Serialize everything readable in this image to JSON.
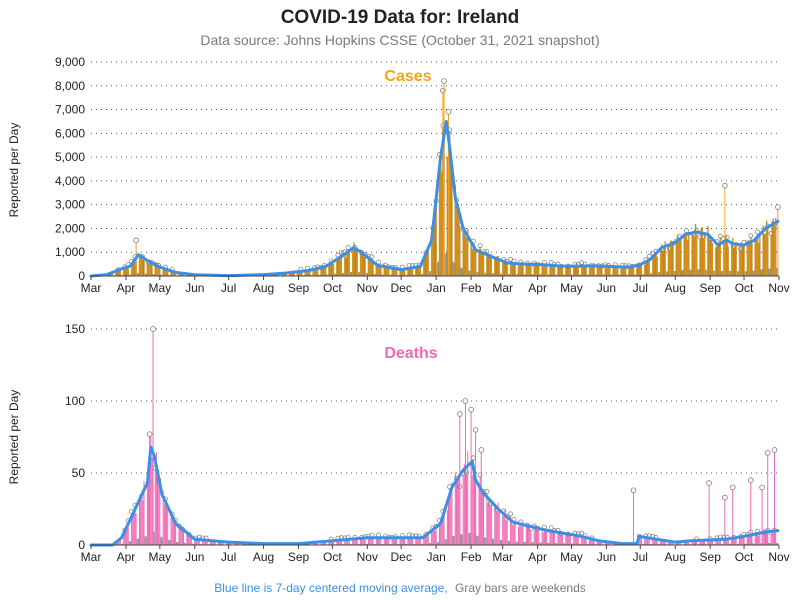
{
  "title": "COVID-19 Data for: Ireland",
  "subtitle": "Data source: Johns Hopkins CSSE (October 31, 2021 snapshot)",
  "footer": {
    "part1": "Blue line is 7-day centered moving average,",
    "part2": "Gray bars are weekends"
  },
  "colors": {
    "cases": "#f5a31a",
    "deaths": "#ee6ab2",
    "average": "#3d8fe6",
    "weekend": "#8c8c8c",
    "grid": "#555555"
  },
  "chart_data": [
    {
      "type": "bar",
      "title": "Cases",
      "ylabel": "Reported per Day",
      "ylim": [
        0,
        9000
      ],
      "yticks": [
        "0",
        "1,000",
        "2,000",
        "3,000",
        "4,000",
        "5,000",
        "6,000",
        "7,000",
        "8,000",
        "9,000"
      ],
      "xticks": [
        "Mar",
        "Apr",
        "May",
        "Jun",
        "Jul",
        "Aug",
        "Sep",
        "Oct",
        "Nov",
        "Dec",
        "Jan",
        "Feb",
        "Mar",
        "Apr",
        "May",
        "Jun",
        "Jul",
        "Aug",
        "Sep",
        "Oct",
        "Nov"
      ],
      "grid": "horizontal dotted",
      "series": [
        {
          "name": "Blue line is 7-day centered moving average",
          "type": "line",
          "points": [
            [
              "2020-03-01",
              0
            ],
            [
              "2020-03-15",
              60
            ],
            [
              "2020-03-25",
              250
            ],
            [
              "2020-04-05",
              420
            ],
            [
              "2020-04-12",
              900
            ],
            [
              "2020-04-20",
              650
            ],
            [
              "2020-05-01",
              380
            ],
            [
              "2020-05-15",
              150
            ],
            [
              "2020-06-01",
              50
            ],
            [
              "2020-07-01",
              15
            ],
            [
              "2020-08-01",
              60
            ],
            [
              "2020-08-20",
              120
            ],
            [
              "2020-09-10",
              230
            ],
            [
              "2020-09-25",
              400
            ],
            [
              "2020-10-10",
              850
            ],
            [
              "2020-10-20",
              1200
            ],
            [
              "2020-10-28",
              950
            ],
            [
              "2020-11-10",
              450
            ],
            [
              "2020-12-01",
              270
            ],
            [
              "2020-12-18",
              400
            ],
            [
              "2020-12-28",
              1500
            ],
            [
              "2021-01-05",
              5000
            ],
            [
              "2021-01-10",
              6500
            ],
            [
              "2021-01-13",
              5400
            ],
            [
              "2021-01-18",
              3300
            ],
            [
              "2021-01-25",
              2000
            ],
            [
              "2021-02-05",
              1100
            ],
            [
              "2021-02-20",
              800
            ],
            [
              "2021-03-05",
              550
            ],
            [
              "2021-03-20",
              500
            ],
            [
              "2021-04-05",
              480
            ],
            [
              "2021-04-20",
              420
            ],
            [
              "2021-05-05",
              410
            ],
            [
              "2021-05-20",
              430
            ],
            [
              "2021-06-05",
              400
            ],
            [
              "2021-06-20",
              370
            ],
            [
              "2021-07-01",
              480
            ],
            [
              "2021-07-10",
              700
            ],
            [
              "2021-07-20",
              1200
            ],
            [
              "2021-08-01",
              1400
            ],
            [
              "2021-08-10",
              1750
            ],
            [
              "2021-08-20",
              1850
            ],
            [
              "2021-08-30",
              1750
            ],
            [
              "2021-09-08",
              1300
            ],
            [
              "2021-09-15",
              1500
            ],
            [
              "2021-09-22",
              1350
            ],
            [
              "2021-10-01",
              1300
            ],
            [
              "2021-10-10",
              1500
            ],
            [
              "2021-10-20",
              2000
            ],
            [
              "2021-10-31",
              2300
            ]
          ]
        }
      ],
      "spikes": [
        [
          "2020-04-10",
          1500
        ],
        [
          "2021-01-07",
          7800
        ],
        [
          "2021-01-08",
          8200
        ],
        [
          "2021-01-12",
          6900
        ],
        [
          "2021-09-14",
          3800
        ],
        [
          "2021-10-31",
          2900
        ]
      ]
    },
    {
      "type": "bar",
      "title": "Deaths",
      "ylabel": "Reported per Day",
      "ylim": [
        0,
        150
      ],
      "yticks": [
        "0",
        "50",
        "100",
        "150"
      ],
      "xticks": [
        "Mar",
        "Apr",
        "May",
        "Jun",
        "Jul",
        "Aug",
        "Sep",
        "Oct",
        "Nov",
        "Dec",
        "Jan",
        "Feb",
        "Mar",
        "Apr",
        "May",
        "Jun",
        "Jul",
        "Aug",
        "Sep",
        "Oct",
        "Nov"
      ],
      "grid": "horizontal dotted",
      "series": [
        {
          "name": "Blue line is 7-day centered moving average",
          "type": "line",
          "points": [
            [
              "2020-03-01",
              0
            ],
            [
              "2020-03-20",
              0
            ],
            [
              "2020-03-28",
              5
            ],
            [
              "2020-04-05",
              18
            ],
            [
              "2020-04-15",
              35
            ],
            [
              "2020-04-20",
              43
            ],
            [
              "2020-04-23",
              68
            ],
            [
              "2020-04-26",
              62
            ],
            [
              "2020-05-03",
              35
            ],
            [
              "2020-05-15",
              15
            ],
            [
              "2020-06-01",
              4
            ],
            [
              "2020-07-01",
              2
            ],
            [
              "2020-08-01",
              1
            ],
            [
              "2020-09-01",
              1
            ],
            [
              "2020-10-01",
              3
            ],
            [
              "2020-11-01",
              5
            ],
            [
              "2020-12-01",
              5
            ],
            [
              "2020-12-20",
              5
            ],
            [
              "2021-01-05",
              15
            ],
            [
              "2021-01-15",
              40
            ],
            [
              "2021-01-25",
              52
            ],
            [
              "2021-02-02",
              58
            ],
            [
              "2021-02-05",
              45
            ],
            [
              "2021-02-12",
              36
            ],
            [
              "2021-02-25",
              25
            ],
            [
              "2021-03-10",
              16
            ],
            [
              "2021-03-25",
              13
            ],
            [
              "2021-04-10",
              10
            ],
            [
              "2021-04-25",
              8
            ],
            [
              "2021-05-10",
              6
            ],
            [
              "2021-05-25",
              3
            ],
            [
              "2021-06-15",
              1
            ],
            [
              "2021-06-28",
              1
            ],
            [
              "2021-06-30",
              6
            ],
            [
              "2021-07-15",
              4
            ],
            [
              "2021-08-01",
              2
            ],
            [
              "2021-08-15",
              3
            ],
            [
              "2021-09-15",
              4
            ],
            [
              "2021-10-01",
              6
            ],
            [
              "2021-10-20",
              9
            ],
            [
              "2021-10-31",
              10
            ]
          ]
        }
      ],
      "spikes": [
        [
          "2020-04-25",
          150
        ],
        [
          "2020-04-22",
          77
        ],
        [
          "2021-01-22",
          91
        ],
        [
          "2021-01-27",
          100
        ],
        [
          "2021-02-01",
          94
        ],
        [
          "2021-02-05",
          80
        ],
        [
          "2021-02-10",
          66
        ],
        [
          "2021-06-25",
          38
        ],
        [
          "2021-08-31",
          43
        ],
        [
          "2021-09-14",
          33
        ],
        [
          "2021-09-21",
          40
        ],
        [
          "2021-10-07",
          45
        ],
        [
          "2021-10-17",
          40
        ],
        [
          "2021-10-22",
          64
        ],
        [
          "2021-10-28",
          66
        ]
      ]
    }
  ]
}
